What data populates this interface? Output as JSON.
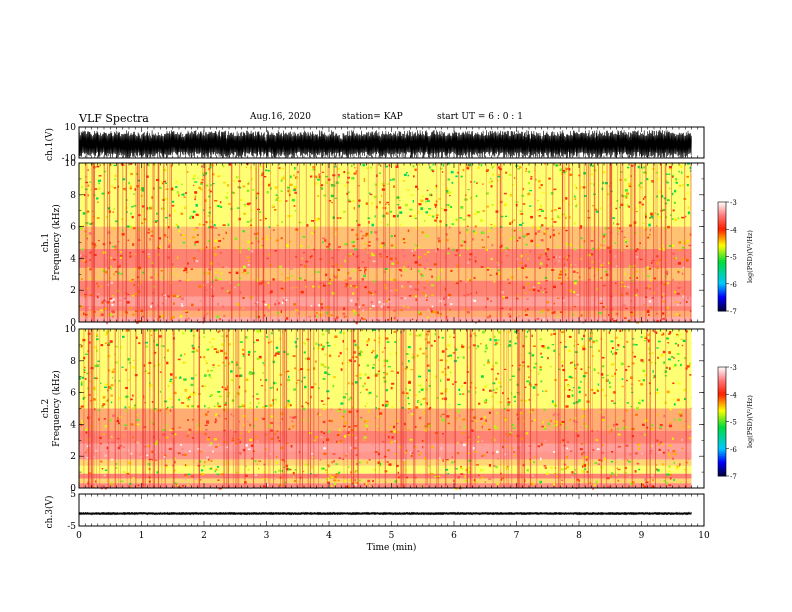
{
  "header": {
    "title": "VLF Spectra",
    "date": "Aug.16, 2020",
    "station": "station= KAP",
    "start": "start UT =  6 : 0 : 1"
  },
  "chart_data": [
    {
      "type": "line",
      "panel": "ch.1 waveform",
      "ylabel": "ch.1(V)",
      "ylim": [
        -10,
        10
      ],
      "yticks": [
        "10",
        "-10"
      ],
      "xlim": [
        0,
        10
      ],
      "description_of_data": "dense broadband signal roughly between -9 and +9 V for the full record (0 to ~9.8 min)",
      "record_end_min": 9.8
    },
    {
      "type": "heatmap",
      "panel": "ch.1 spectrogram",
      "ylabel": "ch.1 Frequency (kHz)",
      "ylim": [
        0,
        10
      ],
      "yticks": [
        "0",
        "2",
        "4",
        "6",
        "8",
        "10"
      ],
      "xlim": [
        0,
        10
      ],
      "colorbar": {
        "label": "log(PSD)(V²/Hz)",
        "range": [
          -7,
          -3
        ],
        "ticks": [
          "-3",
          "-4",
          "-5",
          "-6",
          "-7"
        ]
      },
      "bands": [
        {
          "f": [
            0,
            0.3
          ],
          "level": -3.6
        },
        {
          "f": [
            0.3,
            0.7
          ],
          "level": -4.2
        },
        {
          "f": [
            0.7,
            1.0
          ],
          "level": -4.0
        },
        {
          "f": [
            1.0,
            1.6
          ],
          "level": -3.7
        },
        {
          "f": [
            1.6,
            2.6
          ],
          "level": -4.0
        },
        {
          "f": [
            2.6,
            3.4
          ],
          "level": -4.3
        },
        {
          "f": [
            3.4,
            4.6
          ],
          "level": -4.0
        },
        {
          "f": [
            4.6,
            6.0
          ],
          "level": -4.3
        },
        {
          "f": [
            6.0,
            10.0
          ],
          "level": -4.6
        }
      ]
    },
    {
      "type": "heatmap",
      "panel": "ch.2 spectrogram",
      "ylabel": "ch.2 Frequency (kHz)",
      "ylim": [
        0,
        10
      ],
      "yticks": [
        "0",
        "2",
        "4",
        "6",
        "8",
        "10"
      ],
      "xlim": [
        0,
        10
      ],
      "colorbar": {
        "label": "log(PSD)(V²/Hz)",
        "range": [
          -7,
          -3
        ],
        "ticks": [
          "-3",
          "-4",
          "-5",
          "-6",
          "-7"
        ]
      },
      "bands": [
        {
          "f": [
            0,
            0.3
          ],
          "level": -3.9
        },
        {
          "f": [
            0.3,
            0.6
          ],
          "level": -4.4
        },
        {
          "f": [
            0.6,
            0.9
          ],
          "level": -4.0
        },
        {
          "f": [
            0.9,
            1.4
          ],
          "level": -4.6
        },
        {
          "f": [
            1.4,
            1.8
          ],
          "level": -4.4
        },
        {
          "f": [
            1.8,
            2.3
          ],
          "level": -3.8
        },
        {
          "f": [
            2.3,
            2.8
          ],
          "level": -3.7
        },
        {
          "f": [
            2.8,
            3.6
          ],
          "level": -4.0
        },
        {
          "f": [
            3.6,
            5.0
          ],
          "level": -4.2
        },
        {
          "f": [
            5.0,
            10.0
          ],
          "level": -4.6
        }
      ]
    },
    {
      "type": "line",
      "panel": "ch.3 waveform",
      "ylabel": "ch.3(V)",
      "ylim": [
        -5,
        5
      ],
      "yticks": [
        "5",
        "-5"
      ],
      "xlim": [
        0,
        10
      ],
      "xlabel": "Time (min)",
      "xticks": [
        "0",
        "1",
        "2",
        "3",
        "4",
        "5",
        "6",
        "7",
        "8",
        "9",
        "10"
      ],
      "description_of_data": "narrow band of oscillation around -1 V (approx -1.6 to -0.6 V) for the full record",
      "center": -1.1,
      "halfwidth": 0.5
    }
  ]
}
